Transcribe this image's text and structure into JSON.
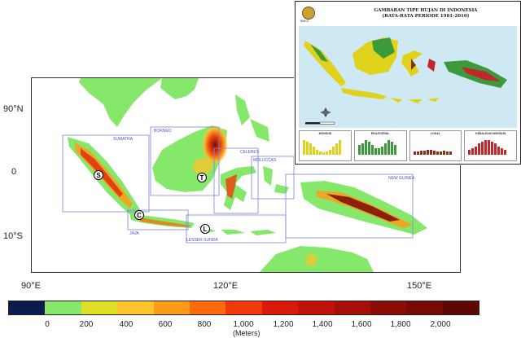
{
  "map": {
    "lat_labels": [
      "90°N",
      "0",
      "10°S"
    ],
    "lon_labels": [
      "90°E",
      "120°E",
      "150°E"
    ],
    "region_labels": {
      "sumatra": "SUMATRA",
      "borneo": "BORNEO",
      "celebes": "CELEBES",
      "moluccas": "MOLUCCAS",
      "new_guinea": "NEW GUINEA",
      "java": "JAVA",
      "lesser_sunda": "LESSER SUNDA"
    },
    "markers": {
      "s": "S",
      "t": "T",
      "c": "C",
      "l": "L"
    },
    "colors": {
      "ocean": "#ffffff",
      "box_outline": "#7d86d6"
    }
  },
  "inset": {
    "title_line1": "GAMBARAN TIPE HUJAN DI INDONESIA",
    "title_line2": "(RATA-RATA PERIODE 1981-2010)",
    "logo_text": "BMKG",
    "panels": [
      "MONSUN",
      "EKUATORIAL",
      "LOKAL",
      "KEBALIKAN MONSUN"
    ],
    "panel_colors": [
      "#e0d21a",
      "#3c9a3c",
      "#8b2f1a",
      "#c0282a"
    ]
  },
  "colorbar": {
    "unit": "(Meters)",
    "colors": [
      "#0b1b4f",
      "#85e86a",
      "#dfdf2a",
      "#ffc32b",
      "#ff9a1a",
      "#ff6a0a",
      "#ef3a0a",
      "#d91a0a",
      "#c0120a",
      "#a50f08",
      "#8e0c06",
      "#770a05",
      "#5e0803"
    ],
    "labels": [
      "0",
      "200",
      "400",
      "600",
      "800",
      "1,000",
      "1,200",
      "1,400",
      "1,600",
      "1,800",
      "2,000"
    ]
  }
}
